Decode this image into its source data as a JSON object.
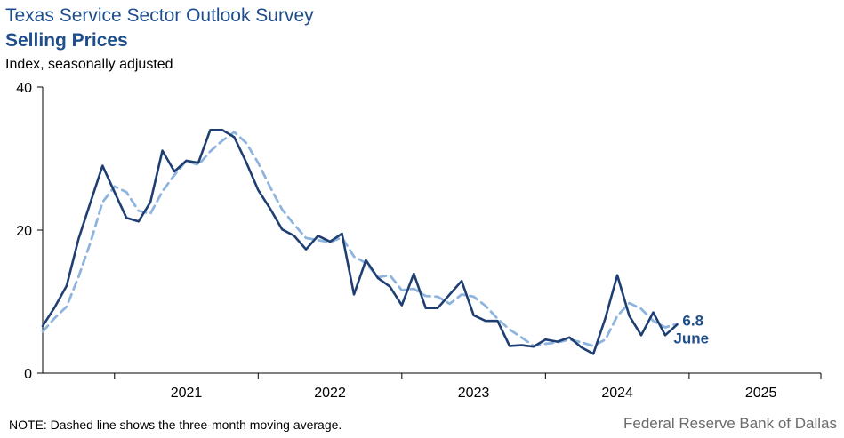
{
  "chart_data": {
    "type": "line",
    "title": "Texas Service Sector Outlook Survey",
    "subtitle": "Selling Prices",
    "ylabel": "Index, seasonally adjusted",
    "ylim": [
      0,
      40
    ],
    "yticks": [
      0,
      20,
      40
    ],
    "xlim": [
      2020.5,
      2025.917
    ],
    "xtick_labels": [
      "2021",
      "2022",
      "2023",
      "2024",
      "2025"
    ],
    "x_start": "2020-07",
    "x_frequency": "monthly",
    "grid": false,
    "series": [
      {
        "style": "solid",
        "color": "#1f3f73",
        "values": [
          6.6,
          9.2,
          12.2,
          18.8,
          23.9,
          29.0,
          25.3,
          21.7,
          21.2,
          23.9,
          31.1,
          28.2,
          29.7,
          29.4,
          34.0,
          34.0,
          33.0,
          29.5,
          25.6,
          23.0,
          20.1,
          19.2,
          17.3,
          19.2,
          18.4,
          19.5,
          11.0,
          15.8,
          13.3,
          12.1,
          9.5,
          13.9,
          9.1,
          9.1,
          11.0,
          12.9,
          8.1,
          7.3,
          7.3,
          3.8,
          3.9,
          3.7,
          4.7,
          4.4,
          5.0,
          3.6,
          2.7,
          7.7,
          13.7,
          8.0,
          5.3,
          8.5,
          5.3,
          6.8
        ]
      },
      {
        "style": "dashed",
        "color": "#8fb4de",
        "values": [
          5.8,
          7.7,
          9.3,
          13.5,
          18.3,
          23.9,
          26.1,
          25.3,
          22.7,
          22.3,
          25.4,
          27.7,
          29.7,
          29.1,
          31.0,
          32.5,
          33.7,
          32.2,
          29.4,
          26.0,
          22.9,
          20.8,
          18.9,
          18.6,
          18.3,
          19.0,
          16.3,
          15.4,
          13.4,
          13.7,
          11.6,
          11.8,
          10.8,
          10.7,
          9.7,
          11.0,
          10.7,
          9.4,
          7.6,
          6.1,
          5.0,
          3.8,
          4.1,
          4.3,
          4.7,
          4.3,
          3.8,
          4.7,
          8.0,
          9.8,
          9.0,
          7.3,
          6.4,
          6.9
        ]
      }
    ],
    "annotation": {
      "value": "6.8",
      "label": "June"
    },
    "note": "NOTE: Dashed line shows the three-month  moving average.",
    "source": "Federal Reserve Bank of Dallas"
  }
}
